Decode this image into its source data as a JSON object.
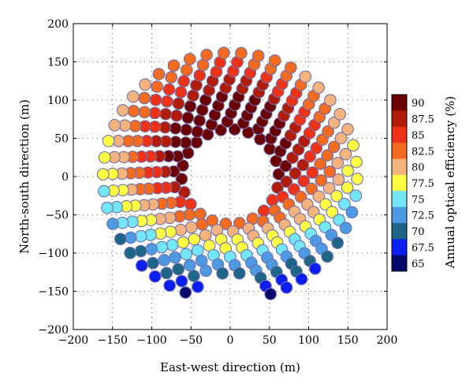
{
  "chart_data": {
    "type": "scatter",
    "title": "",
    "xlabel": "East-west direction (m)",
    "ylabel": "North-south direction (m)",
    "xlim": [
      -200,
      200
    ],
    "ylim": [
      -200,
      200
    ],
    "xticks": [
      "−200",
      "−150",
      "−100",
      "−50",
      "0",
      "50",
      "100",
      "150",
      "200"
    ],
    "yticks": [
      "−200",
      "−150",
      "−100",
      "−50",
      "0",
      "50",
      "100",
      "150",
      "200"
    ],
    "grid": true,
    "field": {
      "rings_m": [
        62,
        72,
        83,
        94,
        105,
        116,
        127,
        138,
        150,
        162
      ],
      "heliostats_per_ring": [
        22,
        22,
        25,
        28,
        31,
        34,
        37,
        40,
        43,
        46
      ],
      "south_gap_deg": [
        255,
        285
      ],
      "south_gap_min_radius_m": 130
    },
    "colorbar": {
      "label": "Annual optical efficiency (%)",
      "levels": [
        "90",
        "87.5",
        "85",
        "82.5",
        "80",
        "77.5",
        "75",
        "72.5",
        "70",
        "67.5",
        "65"
      ],
      "colors": [
        "#6b0000",
        "#b01c06",
        "#ed3217",
        "#f26b1e",
        "#f4b27c",
        "#ffff44",
        "#73e6f7",
        "#4d9ae2",
        "#1e6688",
        "#0b1ff2",
        "#06086b"
      ]
    }
  }
}
